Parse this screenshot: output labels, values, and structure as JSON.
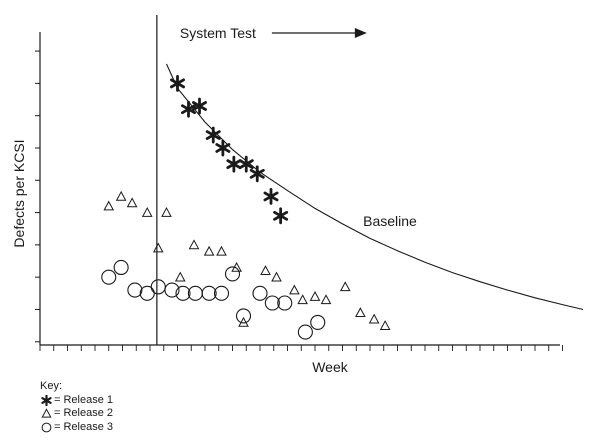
{
  "chart_data": {
    "type": "scatter",
    "title": "",
    "xlabel": "Week",
    "ylabel": "Defects per KCSI",
    "xlim": [
      0,
      40
    ],
    "ylim": [
      0,
      10
    ],
    "grid": false,
    "phase_marker": {
      "x": 8.5,
      "label": "System Test"
    },
    "baseline": {
      "label": "Baseline",
      "points": [
        [
          9.2,
          8.7
        ],
        [
          10,
          7.95
        ],
        [
          12,
          6.9
        ],
        [
          14,
          6.05
        ],
        [
          16,
          5.35
        ],
        [
          18,
          4.78
        ],
        [
          20,
          4.23
        ],
        [
          22,
          3.75
        ],
        [
          24,
          3.3
        ],
        [
          26,
          2.92
        ],
        [
          28,
          2.56
        ],
        [
          30,
          2.24
        ],
        [
          32,
          1.96
        ],
        [
          34,
          1.7
        ],
        [
          36,
          1.46
        ],
        [
          38,
          1.25
        ],
        [
          39.5,
          1.1
        ]
      ]
    },
    "series": [
      {
        "name": "Release 1",
        "marker": "star",
        "points": [
          [
            10,
            8.1
          ],
          [
            10.8,
            7.3
          ],
          [
            11.6,
            7.4
          ],
          [
            12.6,
            6.5
          ],
          [
            13.3,
            6.1
          ],
          [
            14.1,
            5.6
          ],
          [
            15,
            5.6
          ],
          [
            15.8,
            5.3
          ],
          [
            16.8,
            4.6
          ],
          [
            17.5,
            4.0
          ]
        ]
      },
      {
        "name": "Release 2",
        "marker": "triangle",
        "points": [
          [
            5,
            4.3
          ],
          [
            5.9,
            4.6
          ],
          [
            6.7,
            4.4
          ],
          [
            7.8,
            4.1
          ],
          [
            9.2,
            4.1
          ],
          [
            8.6,
            3.0
          ],
          [
            11.2,
            3.1
          ],
          [
            12.3,
            2.9
          ],
          [
            13.2,
            2.9
          ],
          [
            14.3,
            2.4
          ],
          [
            10.2,
            2.1
          ],
          [
            16.4,
            2.3
          ],
          [
            17.2,
            2.1
          ],
          [
            18.5,
            1.7
          ],
          [
            19.1,
            1.4
          ],
          [
            20,
            1.5
          ],
          [
            20.8,
            1.4
          ],
          [
            22.2,
            1.8
          ],
          [
            23.3,
            1.0
          ],
          [
            24.3,
            0.8
          ],
          [
            25.1,
            0.6
          ],
          [
            14.8,
            0.7
          ]
        ]
      },
      {
        "name": "Release 3",
        "marker": "circle",
        "points": [
          [
            5,
            2.1
          ],
          [
            5.9,
            2.4
          ],
          [
            6.9,
            1.7
          ],
          [
            7.8,
            1.6
          ],
          [
            8.6,
            1.8
          ],
          [
            9.6,
            1.7
          ],
          [
            10.4,
            1.6
          ],
          [
            11.3,
            1.6
          ],
          [
            12.3,
            1.6
          ],
          [
            13.2,
            1.6
          ],
          [
            14.0,
            2.2
          ],
          [
            14.8,
            0.9
          ],
          [
            16.0,
            1.6
          ],
          [
            16.9,
            1.3
          ],
          [
            17.8,
            1.3
          ],
          [
            19.3,
            0.4
          ],
          [
            20.2,
            0.7
          ]
        ]
      }
    ]
  },
  "key": {
    "title": "Key:",
    "items": [
      {
        "symbol": "star-icon",
        "label": "= Release 1"
      },
      {
        "symbol": "triangle-icon",
        "label": "= Release 2"
      },
      {
        "symbol": "circle-icon",
        "label": "= Release 3"
      }
    ]
  },
  "colors": {
    "ink": "#1a1a1a",
    "background": "#ffffff"
  }
}
